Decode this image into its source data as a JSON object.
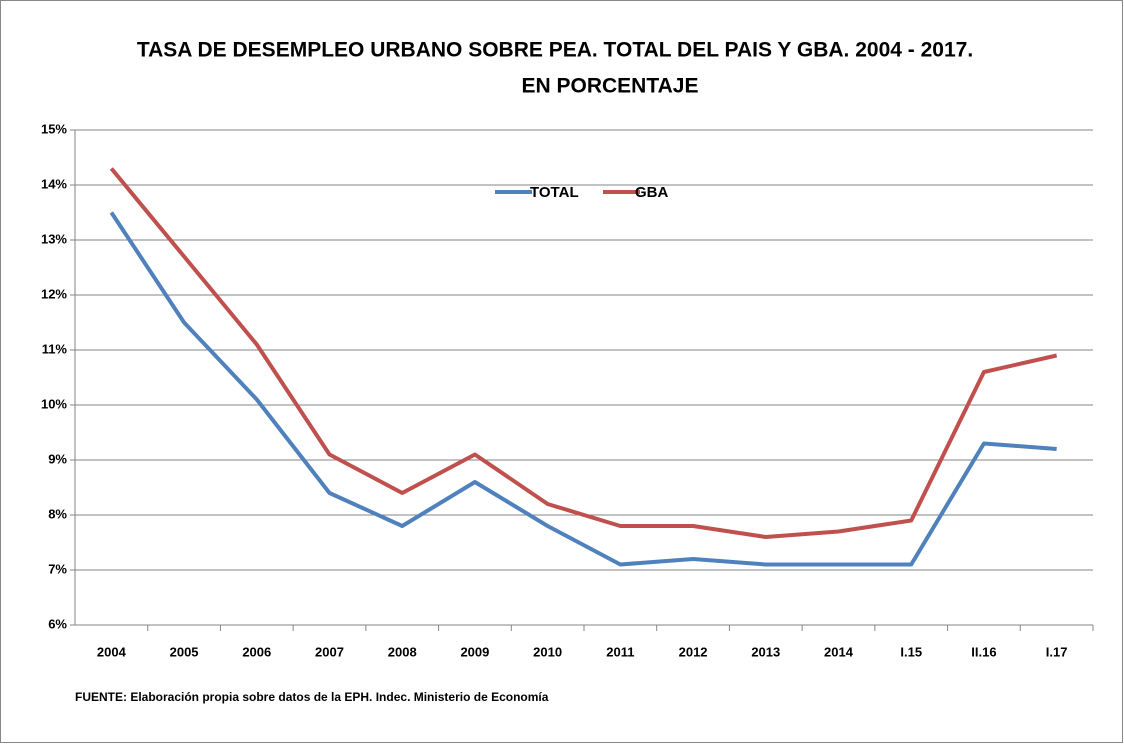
{
  "chart_data": {
    "type": "line",
    "title": "TASA DE DESEMPLEO URBANO SOBRE PEA. TOTAL DEL PAIS Y GBA. 2004 - 2017.",
    "subtitle": "EN PORCENTAJE",
    "categories": [
      "2004",
      "2005",
      "2006",
      "2007",
      "2008",
      "2009",
      "2010",
      "2011",
      "2012",
      "2013",
      "2014",
      "I.15",
      "II.16",
      "I.17"
    ],
    "series": [
      {
        "name": "TOTAL",
        "color": "#4f81bd",
        "values": [
          13.5,
          11.5,
          10.1,
          8.4,
          7.8,
          8.6,
          7.8,
          7.1,
          7.2,
          7.1,
          7.1,
          7.1,
          9.3,
          9.2
        ]
      },
      {
        "name": "GBA",
        "color": "#c0504d",
        "values": [
          14.3,
          12.7,
          11.1,
          9.1,
          8.4,
          9.1,
          8.2,
          7.8,
          7.8,
          7.6,
          7.7,
          7.9,
          10.6,
          10.9
        ]
      }
    ],
    "ylim": [
      6,
      15
    ],
    "yticks": [
      {
        "value": 6,
        "label": "6%"
      },
      {
        "value": 7,
        "label": "7%"
      },
      {
        "value": 8,
        "label": "8%"
      },
      {
        "value": 9,
        "label": "9%"
      },
      {
        "value": 10,
        "label": "10%"
      },
      {
        "value": 11,
        "label": "11%"
      },
      {
        "value": 12,
        "label": "12%"
      },
      {
        "value": 13,
        "label": "13%"
      },
      {
        "value": 14,
        "label": "14%"
      },
      {
        "value": 15,
        "label": "15%"
      }
    ],
    "grid": true,
    "legend": "top",
    "source": "FUENTE: Elaboración propia sobre datos de la EPH. Indec. Ministerio de Economía"
  }
}
